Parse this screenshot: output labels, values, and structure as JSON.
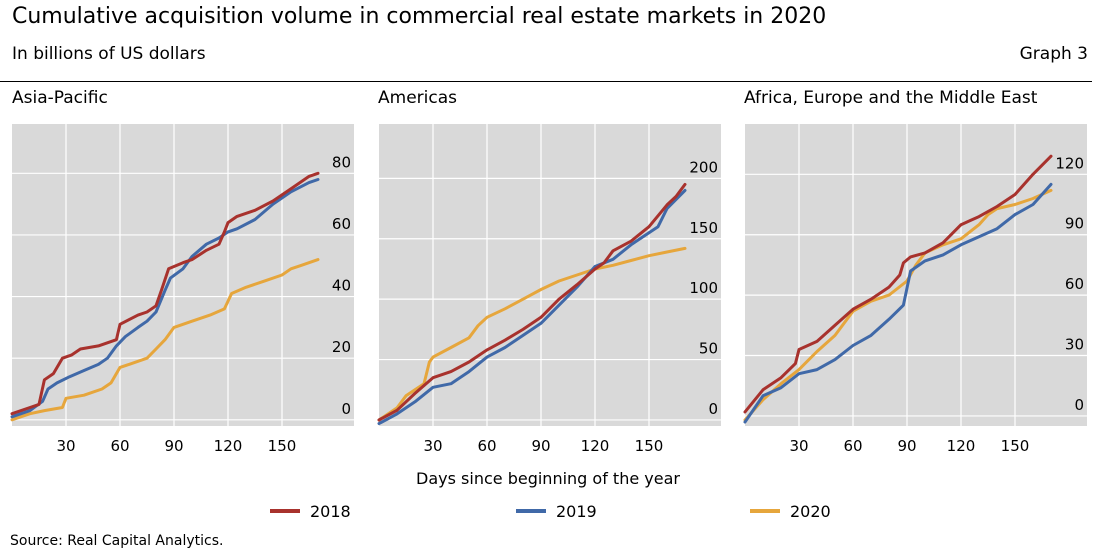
{
  "header": {
    "title": "Cumulative acquisition volume in commercial real estate markets in 2020",
    "subtitle": "In billions of US dollars",
    "graph_label": "Graph 3"
  },
  "footer": {
    "xaxis_label": "Days since beginning of the year",
    "source": "Source: Real Capital Analytics."
  },
  "legend": [
    {
      "label": "2018",
      "color": "#a8322d"
    },
    {
      "label": "2019",
      "color": "#4069a8"
    },
    {
      "label": "2020",
      "color": "#e6a63c"
    }
  ],
  "colors": {
    "plot_bg": "#d9d9d9",
    "grid": "#ffffff"
  },
  "chart_data": [
    {
      "type": "line",
      "title": "Asia-Pacific",
      "xlabel": "Days since beginning of the year",
      "ylabel": "",
      "xlim": [
        0,
        190
      ],
      "ylim": [
        -2,
        96
      ],
      "xticks": [
        30,
        60,
        90,
        120,
        150
      ],
      "yticks": [
        0,
        20,
        40,
        60,
        80
      ],
      "grid": true,
      "y_axis_side": "right",
      "series": [
        {
          "name": "2018",
          "color": "#a8322d",
          "points": [
            [
              0,
              2
            ],
            [
              10,
              4
            ],
            [
              15,
              5
            ],
            [
              18,
              13
            ],
            [
              23,
              15
            ],
            [
              28,
              20
            ],
            [
              33,
              21
            ],
            [
              38,
              23
            ],
            [
              48,
              24
            ],
            [
              58,
              26
            ],
            [
              60,
              31
            ],
            [
              70,
              34
            ],
            [
              75,
              35
            ],
            [
              80,
              37
            ],
            [
              83,
              42
            ],
            [
              87,
              49
            ],
            [
              95,
              51
            ],
            [
              100,
              52
            ],
            [
              108,
              55
            ],
            [
              115,
              57
            ],
            [
              118,
              61
            ],
            [
              120,
              64
            ],
            [
              125,
              66
            ],
            [
              135,
              68
            ],
            [
              145,
              71
            ],
            [
              155,
              75
            ],
            [
              165,
              79
            ],
            [
              170,
              80
            ]
          ]
        },
        {
          "name": "2019",
          "color": "#4069a8",
          "points": [
            [
              0,
              1
            ],
            [
              10,
              3
            ],
            [
              17,
              6
            ],
            [
              20,
              10
            ],
            [
              25,
              12
            ],
            [
              32,
              14
            ],
            [
              40,
              16
            ],
            [
              48,
              18
            ],
            [
              53,
              20
            ],
            [
              58,
              24
            ],
            [
              63,
              27
            ],
            [
              70,
              30
            ],
            [
              75,
              32
            ],
            [
              80,
              35
            ],
            [
              85,
              42
            ],
            [
              88,
              46
            ],
            [
              95,
              49
            ],
            [
              100,
              53
            ],
            [
              108,
              57
            ],
            [
              115,
              59
            ],
            [
              120,
              61
            ],
            [
              125,
              62
            ],
            [
              135,
              65
            ],
            [
              145,
              70
            ],
            [
              155,
              74
            ],
            [
              165,
              77
            ],
            [
              170,
              78
            ]
          ]
        },
        {
          "name": "2020",
          "color": "#e6a63c",
          "points": [
            [
              0,
              0
            ],
            [
              10,
              2
            ],
            [
              18,
              3
            ],
            [
              28,
              4
            ],
            [
              30,
              7
            ],
            [
              40,
              8
            ],
            [
              50,
              10
            ],
            [
              55,
              12
            ],
            [
              60,
              17
            ],
            [
              65,
              18
            ],
            [
              75,
              20
            ],
            [
              80,
              23
            ],
            [
              85,
              26
            ],
            [
              90,
              30
            ],
            [
              100,
              32
            ],
            [
              110,
              34
            ],
            [
              118,
              36
            ],
            [
              122,
              41
            ],
            [
              130,
              43
            ],
            [
              140,
              45
            ],
            [
              150,
              47
            ],
            [
              155,
              49
            ],
            [
              160,
              50
            ],
            [
              170,
              52
            ]
          ]
        }
      ]
    },
    {
      "type": "line",
      "title": "Americas",
      "xlabel": "Days since beginning of the year",
      "ylabel": "",
      "xlim": [
        0,
        190
      ],
      "ylim": [
        -5,
        245
      ],
      "xticks": [
        30,
        60,
        90,
        120,
        150
      ],
      "yticks": [
        0,
        50,
        100,
        150,
        200
      ],
      "grid": true,
      "y_axis_side": "right",
      "series": [
        {
          "name": "2018",
          "color": "#a8322d",
          "points": [
            [
              0,
              0
            ],
            [
              10,
              8
            ],
            [
              20,
              22
            ],
            [
              30,
              35
            ],
            [
              40,
              40
            ],
            [
              50,
              48
            ],
            [
              60,
              58
            ],
            [
              70,
              66
            ],
            [
              80,
              75
            ],
            [
              90,
              85
            ],
            [
              100,
              100
            ],
            [
              110,
              112
            ],
            [
              120,
              125
            ],
            [
              125,
              130
            ],
            [
              130,
              140
            ],
            [
              140,
              148
            ],
            [
              150,
              160
            ],
            [
              160,
              178
            ],
            [
              165,
              185
            ],
            [
              170,
              195
            ]
          ]
        },
        {
          "name": "2019",
          "color": "#4069a8",
          "points": [
            [
              0,
              -3
            ],
            [
              10,
              5
            ],
            [
              20,
              15
            ],
            [
              30,
              27
            ],
            [
              40,
              30
            ],
            [
              50,
              40
            ],
            [
              60,
              52
            ],
            [
              70,
              60
            ],
            [
              80,
              70
            ],
            [
              90,
              80
            ],
            [
              100,
              95
            ],
            [
              110,
              110
            ],
            [
              120,
              127
            ],
            [
              130,
              133
            ],
            [
              140,
              145
            ],
            [
              150,
              155
            ],
            [
              155,
              160
            ],
            [
              160,
              175
            ],
            [
              170,
              190
            ]
          ]
        },
        {
          "name": "2020",
          "color": "#e6a63c",
          "points": [
            [
              0,
              0
            ],
            [
              10,
              10
            ],
            [
              15,
              20
            ],
            [
              20,
              25
            ],
            [
              25,
              30
            ],
            [
              28,
              48
            ],
            [
              30,
              52
            ],
            [
              40,
              60
            ],
            [
              50,
              68
            ],
            [
              55,
              78
            ],
            [
              60,
              85
            ],
            [
              70,
              92
            ],
            [
              80,
              100
            ],
            [
              90,
              108
            ],
            [
              100,
              115
            ],
            [
              110,
              120
            ],
            [
              120,
              125
            ],
            [
              130,
              128
            ],
            [
              140,
              132
            ],
            [
              150,
              136
            ],
            [
              160,
              139
            ],
            [
              170,
              142
            ]
          ]
        }
      ]
    },
    {
      "type": "line",
      "title": "Africa, Europe and the Middle East",
      "xlabel": "Days since beginning of the year",
      "ylabel": "",
      "xlim": [
        0,
        190
      ],
      "ylim": [
        -5,
        145
      ],
      "xticks": [
        30,
        60,
        90,
        120,
        150
      ],
      "yticks": [
        0,
        30,
        60,
        90,
        120
      ],
      "grid": true,
      "y_axis_side": "right",
      "series": [
        {
          "name": "2018",
          "color": "#a8322d",
          "points": [
            [
              0,
              2
            ],
            [
              10,
              13
            ],
            [
              20,
              19
            ],
            [
              28,
              26
            ],
            [
              30,
              33
            ],
            [
              40,
              37
            ],
            [
              50,
              45
            ],
            [
              60,
              53
            ],
            [
              70,
              58
            ],
            [
              80,
              64
            ],
            [
              86,
              70
            ],
            [
              88,
              76
            ],
            [
              92,
              79
            ],
            [
              100,
              81
            ],
            [
              110,
              86
            ],
            [
              120,
              95
            ],
            [
              125,
              97
            ],
            [
              130,
              99
            ],
            [
              140,
              104
            ],
            [
              150,
              110
            ],
            [
              155,
              115
            ],
            [
              160,
              120
            ],
            [
              170,
              129
            ]
          ]
        },
        {
          "name": "2019",
          "color": "#4069a8",
          "points": [
            [
              0,
              -3
            ],
            [
              10,
              10
            ],
            [
              20,
              14
            ],
            [
              30,
              21
            ],
            [
              40,
              23
            ],
            [
              50,
              28
            ],
            [
              60,
              35
            ],
            [
              70,
              40
            ],
            [
              80,
              48
            ],
            [
              88,
              55
            ],
            [
              92,
              72
            ],
            [
              100,
              77
            ],
            [
              110,
              80
            ],
            [
              120,
              85
            ],
            [
              130,
              89
            ],
            [
              140,
              93
            ],
            [
              150,
              100
            ],
            [
              160,
              105
            ],
            [
              170,
              115
            ]
          ]
        },
        {
          "name": "2020",
          "color": "#e6a63c",
          "points": [
            [
              0,
              -2
            ],
            [
              10,
              8
            ],
            [
              20,
              16
            ],
            [
              30,
              23
            ],
            [
              40,
              32
            ],
            [
              50,
              40
            ],
            [
              60,
              52
            ],
            [
              70,
              57
            ],
            [
              80,
              60
            ],
            [
              90,
              67
            ],
            [
              95,
              75
            ],
            [
              100,
              81
            ],
            [
              110,
              85
            ],
            [
              120,
              88
            ],
            [
              130,
              95
            ],
            [
              135,
              100
            ],
            [
              140,
              103
            ],
            [
              150,
              105
            ],
            [
              160,
              108
            ],
            [
              170,
              112
            ]
          ]
        }
      ]
    }
  ]
}
